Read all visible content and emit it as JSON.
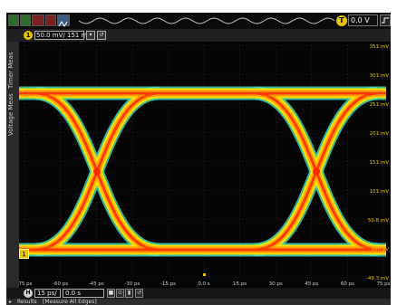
{
  "channel": {
    "badge": "1",
    "scale_text": "50.0 mV/  151 mV"
  },
  "trigger": {
    "badge": "T",
    "level": "0.0 V",
    "icon": "edge-trigger-icon"
  },
  "side_tabs": [
    "Timer Meas",
    "Voltage Meas"
  ],
  "timebase": {
    "badge": "H",
    "scale": "15 ps/",
    "delay": "0.0 s"
  },
  "results": {
    "label": "Results",
    "measure": "[Measure All Edges]"
  },
  "axes": {
    "y_labels": [
      "351 mV",
      "301 mV",
      "251 mV",
      "201 mV",
      "151 mV",
      "101 mV",
      "50.8 mV",
      "880 µV",
      "-49.3 mV"
    ],
    "x_labels": [
      "-75 ps",
      "-60 ps",
      "-45 ps",
      "-30 ps",
      "-15 ps",
      "0.0 s",
      "15 ps",
      "30 ps",
      "45 ps",
      "60 ps",
      "75 ps"
    ]
  },
  "colors": {
    "accent": "#e5c400",
    "trace_core": "#ff3b00",
    "trace_mid": "#ffae00",
    "trace_edge": "#ffe000",
    "trace_halo": "#39d6b4"
  }
}
